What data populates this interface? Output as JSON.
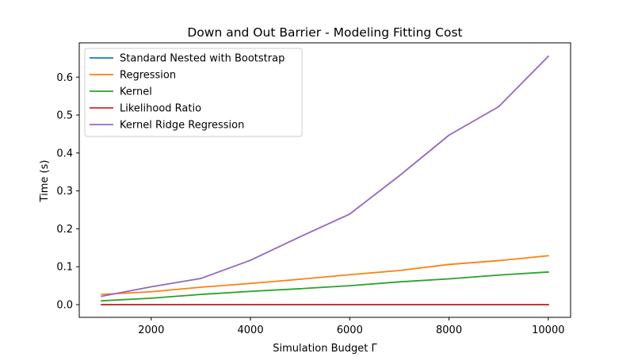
{
  "chart_data": {
    "type": "line",
    "title": "Down and Out Barrier - Modeling Fitting Cost",
    "xlabel": "Simulation Budget Γ",
    "ylabel": "Time (s)",
    "xlim": [
      550,
      10450
    ],
    "ylim": [
      -0.0335,
      0.6905
    ],
    "x_ticks": [
      2000,
      4000,
      6000,
      8000,
      10000
    ],
    "x_tick_labels": [
      "2000",
      "4000",
      "6000",
      "8000",
      "10000"
    ],
    "y_ticks": [
      0.0,
      0.1,
      0.2,
      0.3,
      0.4,
      0.5,
      0.6
    ],
    "y_tick_labels": [
      "0.0",
      "0.1",
      "0.2",
      "0.3",
      "0.4",
      "0.5",
      "0.6"
    ],
    "grid": false,
    "legend_position": "top-left",
    "x": [
      1000,
      2000,
      3000,
      4000,
      5000,
      6000,
      7000,
      8000,
      9000,
      10000
    ],
    "series": [
      {
        "name": "Standard Nested with Bootstrap",
        "color": "#1f77b4",
        "values": [
          0,
          0,
          0,
          0,
          0,
          0,
          0,
          0,
          0,
          0
        ]
      },
      {
        "name": "Regression",
        "color": "#ff7f0e",
        "values": [
          0.027,
          0.034,
          0.046,
          0.056,
          0.067,
          0.079,
          0.09,
          0.106,
          0.116,
          0.129
        ]
      },
      {
        "name": "Kernel",
        "color": "#2ca02c",
        "values": [
          0.01,
          0.017,
          0.027,
          0.035,
          0.042,
          0.05,
          0.06,
          0.068,
          0.078,
          0.086
        ]
      },
      {
        "name": "Likelihood Ratio",
        "color": "#d62728",
        "values": [
          0,
          0,
          0,
          0,
          0,
          0,
          0,
          0,
          0,
          0
        ]
      },
      {
        "name": "Kernel Ridge Regression",
        "color": "#9467bd",
        "values": [
          0.022,
          0.047,
          0.069,
          0.117,
          0.179,
          0.239,
          0.34,
          0.447,
          0.522,
          0.655
        ]
      }
    ]
  }
}
